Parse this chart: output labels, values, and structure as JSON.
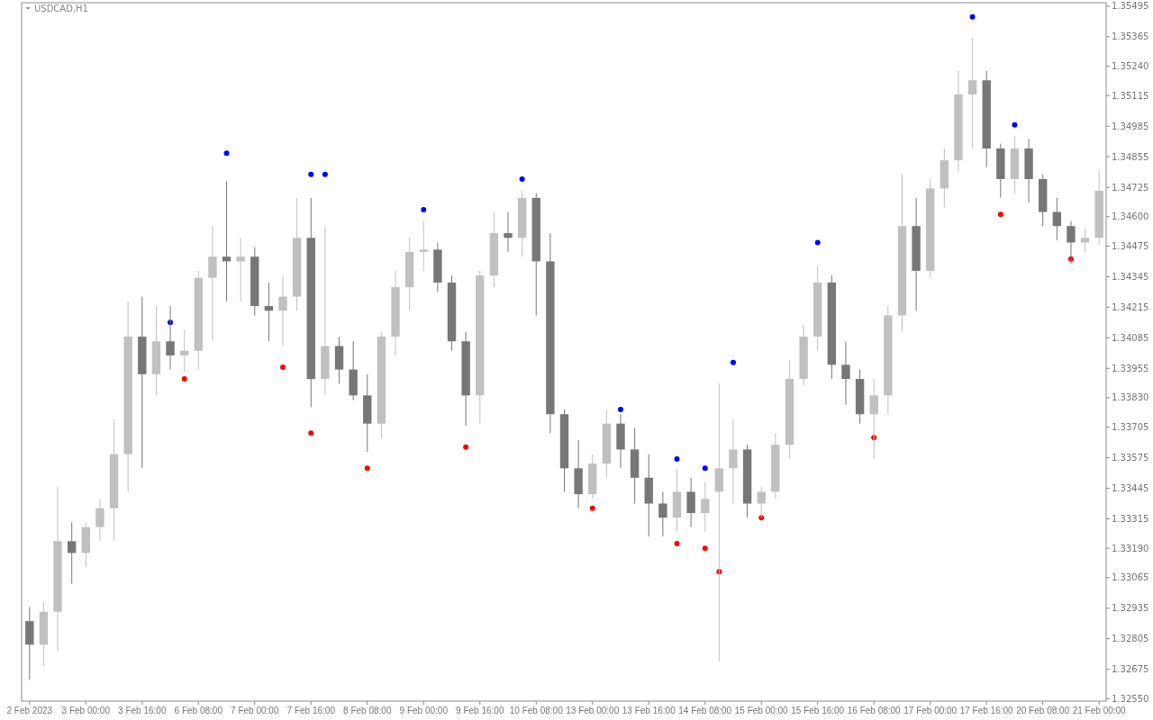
{
  "chart_data": {
    "type": "candlestick",
    "title": "USDCAD,H1",
    "categories": [
      "2 Feb 2023",
      null,
      null,
      null,
      "3 Feb 00:00",
      null,
      null,
      null,
      "3 Feb 16:00",
      null,
      null,
      null,
      "6 Feb 08:00",
      null,
      null,
      null,
      "7 Feb 00:00",
      null,
      null,
      null,
      "7 Feb 16:00",
      null,
      null,
      null,
      "8 Feb 08:00",
      null,
      null,
      null,
      "9 Feb 00:00",
      null,
      null,
      null,
      "9 Feb 16:00",
      null,
      null,
      null,
      "10 Feb 08:00",
      null,
      null,
      null,
      "13 Feb 00:00",
      null,
      null,
      null,
      "13 Feb 16:00",
      null,
      null,
      null,
      "14 Feb 08:00",
      null,
      null,
      null,
      "15 Feb 00:00",
      null,
      null,
      null,
      "15 Feb 16:00",
      null,
      null,
      null,
      "16 Feb 08:00",
      null,
      null,
      null,
      "17 Feb 00:00",
      null,
      null,
      null,
      "17 Feb 16:00",
      null,
      null,
      null,
      "20 Feb 08:00",
      null,
      null,
      null,
      "21 Feb 00:00"
    ],
    "ohlc": [
      [
        1.3288,
        1.3294,
        1.3263,
        1.3278
      ],
      [
        1.3278,
        1.3296,
        1.3269,
        1.3292
      ],
      [
        1.3292,
        1.3345,
        1.3275,
        1.3322
      ],
      [
        1.3322,
        1.333,
        1.3304,
        1.3317
      ],
      [
        1.3317,
        1.333,
        1.3311,
        1.3328
      ],
      [
        1.3328,
        1.334,
        1.3322,
        1.3336
      ],
      [
        1.3336,
        1.3374,
        1.3322,
        1.3359
      ],
      [
        1.3359,
        1.3424,
        1.3343,
        1.3409
      ],
      [
        1.3409,
        1.3426,
        1.3353,
        1.3393
      ],
      [
        1.3393,
        1.3422,
        1.3384,
        1.3407
      ],
      [
        1.3407,
        1.3422,
        1.3395,
        1.3401
      ],
      [
        1.3401,
        1.3412,
        1.3394,
        1.3403
      ],
      [
        1.3403,
        1.3437,
        1.3395,
        1.3434
      ],
      [
        1.3434,
        1.3456,
        1.3407,
        1.3443
      ],
      [
        1.3443,
        1.3475,
        1.3424,
        1.3441
      ],
      [
        1.3441,
        1.3451,
        1.3424,
        1.3443
      ],
      [
        1.3443,
        1.3447,
        1.3418,
        1.3422
      ],
      [
        1.3422,
        1.3432,
        1.3407,
        1.342
      ],
      [
        1.342,
        1.3435,
        1.3405,
        1.3426
      ],
      [
        1.3426,
        1.3468,
        1.342,
        1.3451
      ],
      [
        1.3451,
        1.3468,
        1.3379,
        1.3391
      ],
      [
        1.3391,
        1.3456,
        1.3384,
        1.3405
      ],
      [
        1.3405,
        1.3409,
        1.3389,
        1.3395
      ],
      [
        1.3395,
        1.3407,
        1.3382,
        1.3384
      ],
      [
        1.3384,
        1.3393,
        1.336,
        1.3372
      ],
      [
        1.3372,
        1.3411,
        1.3366,
        1.3409
      ],
      [
        1.3409,
        1.3437,
        1.3401,
        1.343
      ],
      [
        1.343,
        1.3451,
        1.342,
        1.3445
      ],
      [
        1.3445,
        1.3458,
        1.3437,
        1.3446
      ],
      [
        1.3446,
        1.3449,
        1.3428,
        1.3432
      ],
      [
        1.3432,
        1.3435,
        1.3403,
        1.3407
      ],
      [
        1.3407,
        1.3411,
        1.3371,
        1.3384
      ],
      [
        1.3384,
        1.3437,
        1.3372,
        1.3435
      ],
      [
        1.3435,
        1.3462,
        1.343,
        1.3453
      ],
      [
        1.3453,
        1.3462,
        1.3445,
        1.3451
      ],
      [
        1.3451,
        1.3471,
        1.3443,
        1.3468
      ],
      [
        1.3468,
        1.347,
        1.3418,
        1.3441
      ],
      [
        1.3441,
        1.3453,
        1.3368,
        1.3376
      ],
      [
        1.3376,
        1.3378,
        1.3343,
        1.3353
      ],
      [
        1.3353,
        1.3365,
        1.3336,
        1.3342
      ],
      [
        1.3342,
        1.3359,
        1.334,
        1.3355
      ],
      [
        1.3355,
        1.3378,
        1.3349,
        1.3372
      ],
      [
        1.3372,
        1.3376,
        1.3353,
        1.3361
      ],
      [
        1.3361,
        1.337,
        1.3338,
        1.3349
      ],
      [
        1.3349,
        1.3359,
        1.3324,
        1.3338
      ],
      [
        1.3338,
        1.3343,
        1.3324,
        1.3332
      ],
      [
        1.3332,
        1.3353,
        1.3326,
        1.3343
      ],
      [
        1.3343,
        1.3349,
        1.3328,
        1.3334
      ],
      [
        1.3334,
        1.3347,
        1.3326,
        1.334
      ],
      [
        1.3343,
        1.3389,
        1.3271,
        1.3353
      ],
      [
        1.3353,
        1.3374,
        1.3338,
        1.3361
      ],
      [
        1.3361,
        1.3363,
        1.3332,
        1.3338
      ],
      [
        1.3338,
        1.3345,
        1.3332,
        1.3343
      ],
      [
        1.3343,
        1.3368,
        1.334,
        1.3363
      ],
      [
        1.3363,
        1.3399,
        1.3357,
        1.3391
      ],
      [
        1.3391,
        1.3414,
        1.3388,
        1.3409
      ],
      [
        1.3409,
        1.3439,
        1.3403,
        1.3432
      ],
      [
        1.3432,
        1.3435,
        1.3391,
        1.3397
      ],
      [
        1.3397,
        1.3407,
        1.338,
        1.3391
      ],
      [
        1.3391,
        1.3395,
        1.3372,
        1.3376
      ],
      [
        1.3376,
        1.3391,
        1.3357,
        1.3384
      ],
      [
        1.3384,
        1.3422,
        1.3376,
        1.3418
      ],
      [
        1.3418,
        1.3478,
        1.3411,
        1.3456
      ],
      [
        1.3456,
        1.3468,
        1.342,
        1.3437
      ],
      [
        1.3437,
        1.3476,
        1.3434,
        1.3472
      ],
      [
        1.3472,
        1.3489,
        1.3464,
        1.3484
      ],
      [
        1.3484,
        1.3522,
        1.3479,
        1.3512
      ],
      [
        1.3512,
        1.3536,
        1.3489,
        1.3518
      ],
      [
        1.3518,
        1.3522,
        1.3481,
        1.3489
      ],
      [
        1.3489,
        1.3491,
        1.3468,
        1.3476
      ],
      [
        1.3476,
        1.3494,
        1.347,
        1.3489
      ],
      [
        1.3489,
        1.3493,
        1.3466,
        1.3476
      ],
      [
        1.3476,
        1.3478,
        1.3456,
        1.3462
      ],
      [
        1.3462,
        1.3468,
        1.345,
        1.3456
      ],
      [
        1.3456,
        1.3458,
        1.344,
        1.3449
      ],
      [
        1.3449,
        1.3455,
        1.3445,
        1.3451
      ],
      [
        1.3451,
        1.348,
        1.3448,
        1.3471
      ]
    ],
    "series": [
      {
        "type": "scatter",
        "color": "#0000ff",
        "values": [
          null,
          null,
          null,
          null,
          null,
          null,
          null,
          null,
          null,
          null,
          1.3415,
          null,
          null,
          null,
          1.3487,
          null,
          null,
          null,
          null,
          null,
          1.3478,
          1.3478,
          null,
          null,
          null,
          null,
          null,
          null,
          1.3463,
          null,
          null,
          null,
          null,
          null,
          null,
          1.3476,
          null,
          null,
          null,
          null,
          null,
          null,
          1.3378,
          null,
          null,
          null,
          1.3357,
          null,
          1.3353,
          null,
          1.3398,
          null,
          null,
          null,
          null,
          null,
          1.3449,
          null,
          null,
          null,
          null,
          null,
          null,
          null,
          null,
          null,
          null,
          1.3545,
          null,
          null,
          1.3499,
          null,
          null,
          null,
          null,
          null,
          null
        ]
      },
      {
        "type": "scatter",
        "color": "#ff0000",
        "values": [
          null,
          null,
          null,
          null,
          null,
          null,
          null,
          null,
          null,
          null,
          null,
          1.3391,
          null,
          null,
          null,
          null,
          null,
          null,
          1.3396,
          null,
          1.3368,
          null,
          null,
          null,
          1.3353,
          null,
          null,
          null,
          null,
          null,
          null,
          1.3362,
          null,
          null,
          null,
          null,
          null,
          null,
          null,
          null,
          1.3336,
          null,
          null,
          null,
          null,
          null,
          1.3321,
          null,
          1.3319,
          1.3309,
          null,
          null,
          1.3332,
          null,
          null,
          null,
          null,
          null,
          null,
          null,
          1.3366,
          null,
          null,
          null,
          null,
          null,
          null,
          null,
          null,
          1.3461,
          null,
          null,
          null,
          null,
          1.3442,
          null,
          null
        ]
      }
    ],
    "marker": "circle",
    "ylim": [
      1.3254,
      1.3551
    ],
    "yticks": [
      1.35495,
      1.35365,
      {
        "value": 1.3524,
        "label": "1.35240"
      },
      1.35115,
      1.34985,
      1.34855,
      1.34725,
      {
        "value": 1.346,
        "label": "1.34600"
      },
      1.34475,
      1.34345,
      1.34215,
      1.34085,
      1.33955,
      {
        "value": 1.3383,
        "label": "1.33830"
      },
      1.33705,
      1.33575,
      1.33445,
      1.33315,
      {
        "value": 1.3319,
        "label": "1.33190"
      },
      1.33065,
      1.32935,
      1.32805,
      1.32675,
      {
        "value": 1.3255,
        "label": "1.32550"
      }
    ]
  }
}
